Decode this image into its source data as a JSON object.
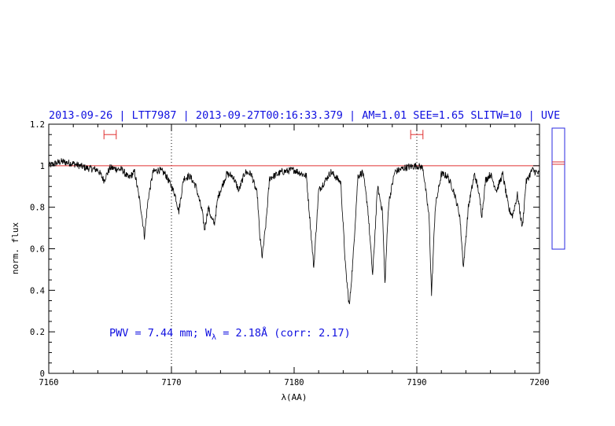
{
  "header": {
    "title": "2013-09-26 | LTT7987 | 2013-09-27T00:16:33.379 | AM=1.01 SEE=1.65 SLITW=10 | UVE"
  },
  "annotation": {
    "prefix": "PWV = 7.44 mm; W",
    "subscript": "λ",
    "suffix": " = 2.18Å (corr: 2.17)"
  },
  "chart_data": {
    "type": "line",
    "xlabel": "λ(AA)",
    "ylabel": "norm. flux",
    "xlim": [
      7160,
      7200
    ],
    "ylim": [
      0,
      1.2
    ],
    "x_ticks": [
      "7160",
      "7170",
      "7180",
      "7190",
      "7200"
    ],
    "y_ticks": [
      "0",
      "0.2",
      "0.4",
      "0.6",
      "0.8",
      "1",
      "1.2"
    ],
    "continuum_level": 1.0,
    "continuum_color": "#e03030",
    "spectrum_color": "#000000",
    "vertical_markers": [
      7170,
      7190
    ],
    "continuum_windows": [
      {
        "x": [
          7164.5,
          7165.5
        ],
        "y": 1.15
      },
      {
        "x": [
          7189.5,
          7190.5
        ],
        "y": 1.15
      }
    ],
    "spectrum_points": [
      [
        7160,
        1.0
      ],
      [
        7161,
        1.02
      ],
      [
        7162,
        1.01
      ],
      [
        7163,
        0.99
      ],
      [
        7164,
        0.98
      ],
      [
        7164.5,
        0.93
      ],
      [
        7165,
        0.99
      ],
      [
        7166,
        0.98
      ],
      [
        7166.5,
        0.94
      ],
      [
        7167,
        0.97
      ],
      [
        7167.5,
        0.8
      ],
      [
        7167.8,
        0.66
      ],
      [
        7168.1,
        0.84
      ],
      [
        7168.5,
        0.97
      ],
      [
        7169,
        0.98
      ],
      [
        7169.5,
        0.96
      ],
      [
        7170,
        0.9
      ],
      [
        7170.3,
        0.86
      ],
      [
        7170.6,
        0.78
      ],
      [
        7171,
        0.94
      ],
      [
        7171.5,
        0.95
      ],
      [
        7172,
        0.9
      ],
      [
        7172.5,
        0.78
      ],
      [
        7172.7,
        0.69
      ],
      [
        7173,
        0.8
      ],
      [
        7173.3,
        0.74
      ],
      [
        7173.5,
        0.72
      ],
      [
        7173.8,
        0.85
      ],
      [
        7174.5,
        0.96
      ],
      [
        7175,
        0.95
      ],
      [
        7175.5,
        0.88
      ],
      [
        7176,
        0.97
      ],
      [
        7176.5,
        0.96
      ],
      [
        7177,
        0.86
      ],
      [
        7177.2,
        0.66
      ],
      [
        7177.4,
        0.56
      ],
      [
        7177.7,
        0.72
      ],
      [
        7178,
        0.94
      ],
      [
        7179,
        0.97
      ],
      [
        7180,
        0.98
      ],
      [
        7181,
        0.95
      ],
      [
        7181.6,
        0.51
      ],
      [
        7182,
        0.88
      ],
      [
        7183,
        0.97
      ],
      [
        7183.8,
        0.92
      ],
      [
        7184.2,
        0.5
      ],
      [
        7184.5,
        0.32
      ],
      [
        7184.8,
        0.55
      ],
      [
        7185.2,
        0.95
      ],
      [
        7185.6,
        0.97
      ],
      [
        7186,
        0.8
      ],
      [
        7186.4,
        0.47
      ],
      [
        7186.8,
        0.9
      ],
      [
        7187.2,
        0.78
      ],
      [
        7187.4,
        0.43
      ],
      [
        7187.7,
        0.82
      ],
      [
        7188.2,
        0.97
      ],
      [
        7189,
        0.99
      ],
      [
        7190,
        1.0
      ],
      [
        7190.5,
        0.99
      ],
      [
        7191,
        0.75
      ],
      [
        7191.2,
        0.38
      ],
      [
        7191.5,
        0.8
      ],
      [
        7192,
        0.96
      ],
      [
        7192.5,
        0.95
      ],
      [
        7193,
        0.88
      ],
      [
        7193.5,
        0.76
      ],
      [
        7193.8,
        0.51
      ],
      [
        7194.2,
        0.8
      ],
      [
        7194.7,
        0.96
      ],
      [
        7195,
        0.89
      ],
      [
        7195.3,
        0.76
      ],
      [
        7195.6,
        0.93
      ],
      [
        7196,
        0.96
      ],
      [
        7196.5,
        0.88
      ],
      [
        7197,
        0.96
      ],
      [
        7197.5,
        0.79
      ],
      [
        7197.8,
        0.76
      ],
      [
        7198.2,
        0.86
      ],
      [
        7198.6,
        0.7
      ],
      [
        7198.9,
        0.92
      ],
      [
        7199.4,
        0.98
      ],
      [
        7200,
        0.96
      ]
    ]
  }
}
